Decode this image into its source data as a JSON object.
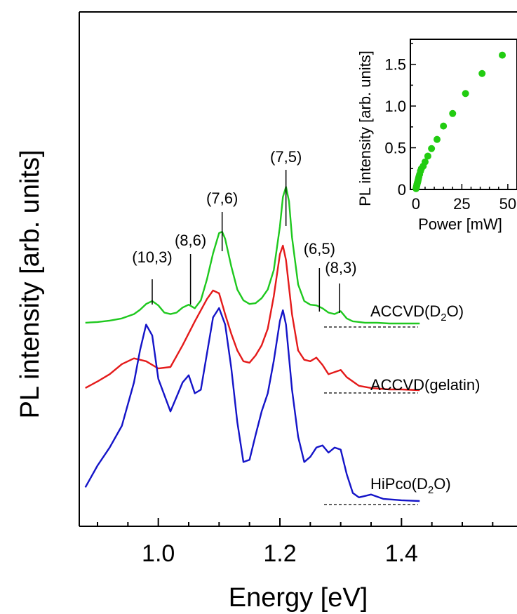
{
  "chart_data": [
    {
      "type": "line",
      "xlabel": "Energy [eV]",
      "ylabel": "PL intensity [arb. units]",
      "xlim": [
        0.87,
        1.59
      ],
      "x_ticks": [
        1.0,
        1.2,
        1.4
      ],
      "x_tick_labels": [
        "1.0",
        "1.2",
        "1.4"
      ],
      "grid": false,
      "y_ticks": "none",
      "series": [
        {
          "name": "ACCVD(D2O)",
          "label_main": "ACCVD(D",
          "label_sub": "2",
          "label_tail": "O)",
          "color": "#1ec81e",
          "x": [
            0.88,
            0.9,
            0.92,
            0.94,
            0.96,
            0.97,
            0.98,
            0.99,
            1.0,
            1.01,
            1.02,
            1.03,
            1.04,
            1.05,
            1.06,
            1.07,
            1.08,
            1.09,
            1.1,
            1.105,
            1.11,
            1.12,
            1.13,
            1.14,
            1.15,
            1.16,
            1.17,
            1.18,
            1.19,
            1.2,
            1.205,
            1.21,
            1.215,
            1.22,
            1.23,
            1.24,
            1.25,
            1.26,
            1.27,
            1.28,
            1.29,
            1.3,
            1.31,
            1.32,
            1.34,
            1.36,
            1.38,
            1.4,
            1.43
          ],
          "y": [
            0.02,
            0.03,
            0.05,
            0.08,
            0.14,
            0.2,
            0.28,
            0.32,
            0.26,
            0.16,
            0.14,
            0.16,
            0.23,
            0.27,
            0.22,
            0.33,
            0.62,
            0.98,
            1.26,
            1.28,
            1.18,
            0.8,
            0.48,
            0.33,
            0.28,
            0.29,
            0.36,
            0.48,
            0.75,
            1.35,
            1.76,
            1.9,
            1.7,
            1.2,
            0.55,
            0.32,
            0.27,
            0.26,
            0.22,
            0.16,
            0.14,
            0.18,
            0.08,
            0.04,
            0.02,
            0.02,
            0.01,
            0.01,
            0.01
          ]
        },
        {
          "name": "ACCVD(gelatin)",
          "color": "#e41a1a",
          "x": [
            0.88,
            0.9,
            0.92,
            0.94,
            0.96,
            0.98,
            1.0,
            1.02,
            1.04,
            1.06,
            1.08,
            1.09,
            1.1,
            1.11,
            1.12,
            1.13,
            1.14,
            1.15,
            1.16,
            1.17,
            1.18,
            1.19,
            1.2,
            1.205,
            1.21,
            1.22,
            1.23,
            1.24,
            1.25,
            1.26,
            1.27,
            1.28,
            1.29,
            1.3,
            1.31,
            1.33,
            1.35,
            1.38,
            1.4,
            1.43
          ],
          "y": [
            0.03,
            0.12,
            0.22,
            0.36,
            0.44,
            0.4,
            0.3,
            0.32,
            0.62,
            0.95,
            1.26,
            1.38,
            1.34,
            1.05,
            0.78,
            0.55,
            0.4,
            0.38,
            0.48,
            0.62,
            0.85,
            1.3,
            1.88,
            2.0,
            1.8,
            1.05,
            0.55,
            0.42,
            0.4,
            0.45,
            0.35,
            0.22,
            0.25,
            0.28,
            0.18,
            0.06,
            0.03,
            0.01,
            0.01,
            0.0
          ]
        },
        {
          "name": "HiPco(D2O)",
          "label_main": "HiPco(D",
          "label_sub": "2",
          "label_tail": "O)",
          "color": "#1414c8",
          "x": [
            0.88,
            0.9,
            0.92,
            0.94,
            0.96,
            0.97,
            0.98,
            0.99,
            1.0,
            1.02,
            1.03,
            1.04,
            1.05,
            1.06,
            1.07,
            1.08,
            1.09,
            1.1,
            1.11,
            1.12,
            1.13,
            1.14,
            1.15,
            1.16,
            1.17,
            1.18,
            1.19,
            1.2,
            1.205,
            1.21,
            1.22,
            1.23,
            1.24,
            1.25,
            1.26,
            1.27,
            1.28,
            1.29,
            1.3,
            1.31,
            1.32,
            1.33,
            1.34,
            1.35,
            1.37,
            1.4,
            1.43
          ],
          "y": [
            0.2,
            0.5,
            0.75,
            1.05,
            1.65,
            2.1,
            2.45,
            2.3,
            1.7,
            1.25,
            1.45,
            1.65,
            1.75,
            1.5,
            1.55,
            2.05,
            2.55,
            2.68,
            2.45,
            1.85,
            1.1,
            0.55,
            0.58,
            0.92,
            1.25,
            1.5,
            1.95,
            2.5,
            2.65,
            2.45,
            1.55,
            0.9,
            0.55,
            0.62,
            0.75,
            0.78,
            0.68,
            0.75,
            0.72,
            0.38,
            0.12,
            0.06,
            0.08,
            0.1,
            0.04,
            0.02,
            0.01
          ]
        }
      ],
      "peak_labels": [
        {
          "text": "(10,3)",
          "x": 0.99
        },
        {
          "text": "(8,6)",
          "x": 1.053
        },
        {
          "text": "(7,6)",
          "x": 1.105
        },
        {
          "text": "(7,5)",
          "x": 1.21
        },
        {
          "text": "(6,5)",
          "x": 1.265
        },
        {
          "text": "(8,3)",
          "x": 1.298
        }
      ]
    },
    {
      "type": "scatter",
      "name": "inset",
      "xlabel": "Power [mW]",
      "ylabel": "PL intensity [arb. units]",
      "xlim": [
        -3,
        55
      ],
      "ylim": [
        0,
        1.8
      ],
      "x_ticks": [
        0,
        25,
        50
      ],
      "x_tick_labels": [
        "0",
        "25",
        "50"
      ],
      "y_ticks": [
        0,
        0.5,
        1.0,
        1.5
      ],
      "y_tick_labels": [
        "0",
        "0.5",
        "1.0",
        "1.5"
      ],
      "color": "#22cc11",
      "x": [
        0.1,
        0.2,
        0.3,
        0.4,
        0.5,
        0.6,
        0.7,
        0.8,
        1.0,
        1.2,
        1.4,
        1.6,
        2.0,
        2.5,
        3.0,
        4.0,
        5.0,
        6.5,
        8.5,
        11.5,
        15.0,
        20.0,
        27.0,
        36.0,
        47.0
      ],
      "y": [
        0.01,
        0.02,
        0.03,
        0.04,
        0.05,
        0.06,
        0.07,
        0.08,
        0.09,
        0.11,
        0.13,
        0.15,
        0.18,
        0.22,
        0.25,
        0.28,
        0.33,
        0.4,
        0.49,
        0.6,
        0.76,
        0.91,
        1.15,
        1.39,
        1.61
      ]
    }
  ]
}
